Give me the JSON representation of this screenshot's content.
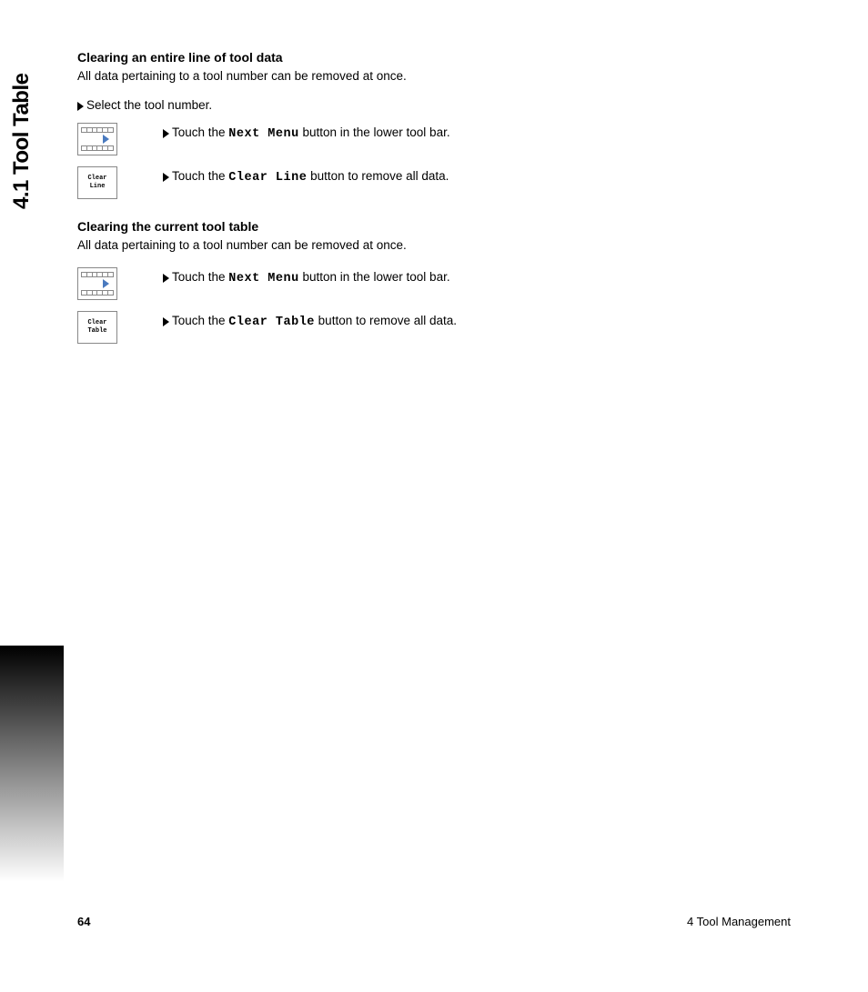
{
  "side_title": "4.1 Tool Table",
  "section1": {
    "heading": "Clearing an entire line of tool data",
    "intro": "All data pertaining to a tool number can be removed at once.",
    "step1": "Select the tool number.",
    "step2_pre": "Touch the ",
    "step2_btn": "Next Menu",
    "step2_post": " button in the lower tool bar.",
    "step3_pre": "Touch the ",
    "step3_btn": "Clear Line",
    "step3_post": " button to remove all data.",
    "icon2_l1": "Clear",
    "icon2_l2": "Line"
  },
  "section2": {
    "heading": "Clearing the current tool table",
    "intro": "All data pertaining to a tool number can be removed at once.",
    "step1_pre": "Touch the ",
    "step1_btn": "Next Menu",
    "step1_post": " button in the lower tool bar.",
    "step2_pre": "Touch the ",
    "step2_btn": "Clear Table",
    "step2_post": " button to remove all data.",
    "icon2_l1": "Clear",
    "icon2_l2": "Table"
  },
  "footer": {
    "page": "64",
    "chapter": "4 Tool Management"
  }
}
